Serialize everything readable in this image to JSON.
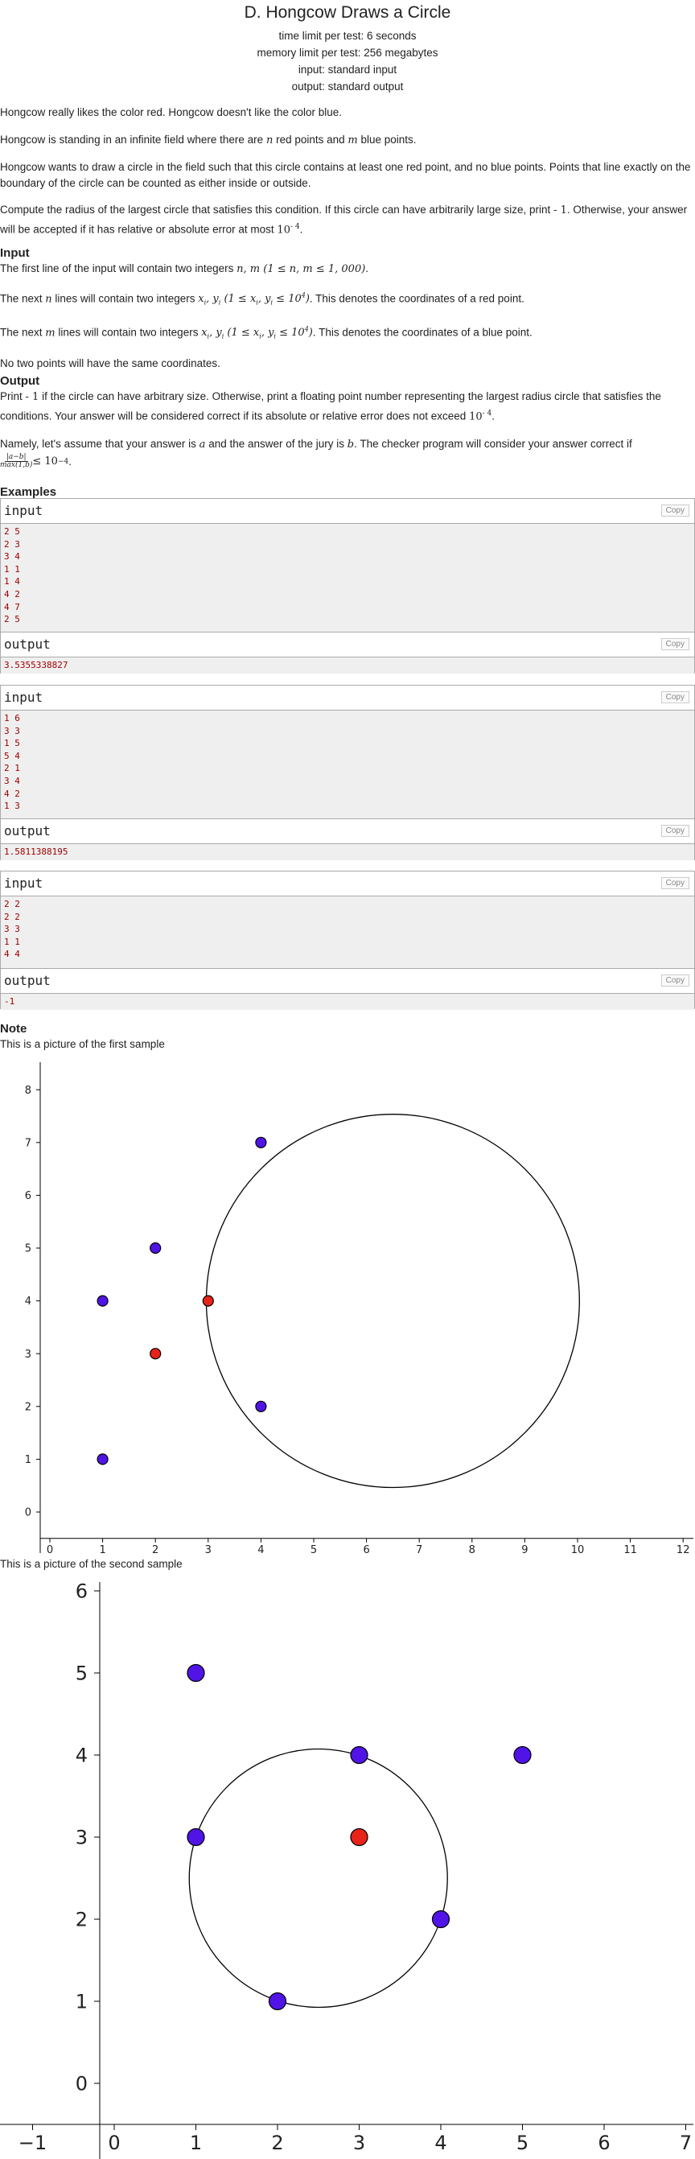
{
  "problem": {
    "title": "D. Hongcow Draws a Circle",
    "time_limit": "time limit per test: 6 seconds",
    "memory_limit": "memory limit per test: 256 megabytes",
    "input_file": "input: standard input",
    "output_file": "output: standard output"
  },
  "statement": {
    "p1": "Hongcow really likes the color red. Hongcow doesn't like the color blue.",
    "p2_a": "Hongcow is standing in an infinite field where there are ",
    "p2_n": "n",
    "p2_b": " red points and ",
    "p2_m": "m",
    "p2_c": " blue points.",
    "p3": "Hongcow wants to draw a circle in the field such that this circle contains at least one red point, and no blue points. Points that line exactly on the boundary of the circle can be counted as either inside or outside.",
    "p4_a": "Compute the radius of the largest circle that satisfies this condition. If this circle can have arbitrarily large size, print ",
    "p4_neg": "- 1",
    "p4_b": ". Otherwise, your answer will be accepted if it has relative or absolute error at most ",
    "p4_eps": "10",
    "p4_exp": "- 4",
    "p4_c": "."
  },
  "input_section": {
    "heading": "Input",
    "l1_a": "The first line of the input will contain two integers ",
    "l1_math": "n, m (1 ≤ n, m ≤ 1, 000)",
    "l1_b": ".",
    "l2_a": "The next ",
    "l2_n": "n",
    "l2_b": " lines will contain two integers ",
    "l2_math": "x",
    "l2_math2": "i",
    "l2_math3": ", y",
    "l2_math4": "i",
    "l2_math5": " (1 ≤ x",
    "l2_math6": "i",
    "l2_math7": ", y",
    "l2_math8": "i",
    "l2_math9": " ≤ 10",
    "l2_math10": "4",
    "l2_math11": ")",
    "l2_c": ". This denotes the coordinates of a red point.",
    "l3_a": "The next ",
    "l3_m": "m",
    "l3_c": ". This denotes the coordinates of a blue point.",
    "l4": "No two points will have the same coordinates."
  },
  "output_section": {
    "heading": "Output",
    "p1_a": "Print ",
    "p1_neg": "- 1",
    "p1_b": " if the circle can have arbitrary size. Otherwise, print a floating point number representing the largest radius circle that satisfies the conditions. Your answer will be considered correct if its absolute or relative error does not exceed ",
    "p1_eps": "10",
    "p1_exp": "- 4",
    "p1_c": ".",
    "p2_a": "Namely, let's assume that your answer is ",
    "p2_a_var": "a",
    "p2_b": " and the answer of the jury is ",
    "p2_b_var": "b",
    "p2_c": ". The checker program will consider your answer correct if",
    "frac_num": "|a−b|",
    "frac_den": "max(1,b)",
    "frac_rel": " ≤ 10",
    "frac_exp": "−4",
    "frac_end": "."
  },
  "examples": {
    "heading": "Examples",
    "input_label": "input",
    "output_label": "output",
    "copy_label": "Copy",
    "samples": [
      {
        "input": "2 5\n2 3\n3 4\n1 1\n1 4\n4 2\n4 7\n2 5",
        "output": "3.5355338827"
      },
      {
        "input": "1 6\n3 3\n1 5\n5 4\n2 1\n3 4\n4 2\n1 3",
        "output": "1.5811388195"
      },
      {
        "input": "2 2\n2 2\n3 3\n1 1\n4 4",
        "output": "-1"
      }
    ]
  },
  "note": {
    "heading": "Note",
    "caption1": "This is a picture of the first sample",
    "caption2": "This is a picture of the second sample"
  },
  "colors": {
    "red": "#e8231a",
    "blue": "#5014e6",
    "sample_text": "#a00000"
  },
  "chart_data": [
    {
      "type": "scatter",
      "title": "",
      "x_ticks": [
        0,
        1,
        2,
        3,
        4,
        5,
        6,
        7,
        8,
        9,
        10,
        11,
        12
      ],
      "y_ticks": [
        0,
        1,
        2,
        3,
        4,
        5,
        6,
        7,
        8
      ],
      "xlim": [
        -0.6,
        12.3
      ],
      "ylim": [
        -0.5,
        8.6
      ],
      "series": [
        {
          "color": "red",
          "points": [
            [
              3,
              4
            ],
            [
              2,
              3
            ]
          ]
        },
        {
          "color": "blue",
          "points": [
            [
              1,
              1
            ],
            [
              1,
              4
            ],
            [
              4,
              2
            ],
            [
              4,
              7
            ],
            [
              2,
              5
            ]
          ]
        }
      ],
      "circle": {
        "cx": 6.5,
        "cy": 4.0,
        "r": 3.5355
      }
    },
    {
      "type": "scatter",
      "title": "",
      "x_ticks": [
        -1,
        0,
        1,
        2,
        3,
        4,
        5,
        6,
        7
      ],
      "y_ticks": [
        0,
        1,
        2,
        3,
        4,
        5,
        6
      ],
      "xlim": [
        -1.3,
        7.2
      ],
      "ylim": [
        -0.5,
        6.4
      ],
      "series": [
        {
          "color": "red",
          "points": [
            [
              3,
              3
            ]
          ]
        },
        {
          "color": "blue",
          "points": [
            [
              1,
              5
            ],
            [
              5,
              4
            ],
            [
              2,
              1
            ],
            [
              3,
              4
            ],
            [
              4,
              2
            ],
            [
              1,
              3
            ]
          ]
        }
      ],
      "circle": {
        "cx": 2.5,
        "cy": 2.5,
        "r": 1.5811
      }
    }
  ]
}
